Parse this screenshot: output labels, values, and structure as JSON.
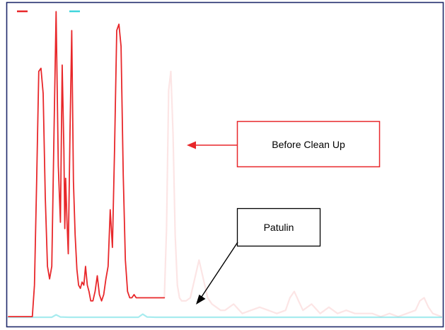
{
  "chart_data": {
    "type": "line",
    "title": "",
    "xlabel": "",
    "ylabel": "",
    "xlim": [
      0,
      100
    ],
    "ylim": [
      0,
      100
    ],
    "legend": {
      "placement": "top-left",
      "entries": [
        {
          "color": "#e8272a"
        },
        {
          "color": "#3fd5dc"
        }
      ]
    },
    "series": [
      {
        "color": "#e8272a",
        "opacity": 1.0,
        "x": [
          0,
          5.0,
          5.5,
          6.0,
          6.5,
          7.0,
          7.5,
          8.0,
          8.5,
          9.0,
          9.5,
          10.0,
          10.5,
          11.0,
          11.5,
          12.0,
          12.4,
          12.8,
          13.0,
          13.2,
          13.5,
          13.8,
          14.2,
          14.6,
          15.0,
          15.4,
          15.8,
          16.2,
          16.6,
          17.0,
          17.4,
          17.8,
          18.2,
          18.6,
          19.0,
          19.5,
          20.0,
          20.5,
          21.0,
          21.5,
          22.0,
          22.5,
          23.0,
          23.5,
          24.0,
          24.5,
          25.0,
          25.5,
          26.0,
          26.5,
          27.0,
          27.5,
          28.0,
          28.5,
          29.0,
          29.5,
          30.0,
          30.5,
          31.0,
          31.5,
          32.0,
          32.5,
          33.0,
          33.5,
          34.0,
          34.5,
          35.0,
          35.5,
          36.0
        ],
        "y": [
          2,
          2,
          2,
          12,
          45,
          80,
          81,
          73,
          40,
          18,
          14,
          18,
          60,
          99,
          50,
          32,
          82,
          55,
          30,
          46,
          33,
          22,
          60,
          93,
          45,
          28,
          17,
          12,
          11,
          13,
          12,
          18,
          12,
          10,
          7,
          7,
          10,
          15,
          9,
          7,
          9,
          14,
          18,
          36,
          24,
          55,
          93,
          95,
          88,
          47,
          20,
          10,
          8,
          8,
          9,
          8,
          8,
          8,
          8,
          8,
          8,
          8,
          8,
          8,
          8,
          8,
          8,
          8,
          8
        ]
      },
      {
        "color": "#e8272a",
        "opacity": 0.12,
        "x": [
          36.0,
          36.5,
          37.0,
          37.5,
          38.0,
          38.5,
          39.0,
          39.5,
          40.0,
          41.0,
          42.0,
          43.0,
          44.0,
          45.0,
          46.0,
          47.0,
          48.0,
          49.0,
          50.0,
          52.0,
          54.0,
          56.0,
          58.0,
          60.0,
          62.0,
          64.0,
          65.0,
          66.0,
          67.0,
          68.0,
          70.0,
          72.0,
          74.0,
          76.0,
          78.0,
          80.0,
          82.0,
          84.0,
          86.0,
          88.0,
          90.0,
          92.0,
          94.0,
          95.0,
          96.0,
          97.0,
          98.0,
          100.0
        ],
        "y": [
          8,
          30,
          74,
          80,
          60,
          28,
          12,
          8,
          7,
          7,
          8,
          14,
          20,
          14,
          8,
          6,
          5,
          4,
          4,
          6,
          3,
          4,
          5,
          4,
          3,
          4,
          8,
          10,
          7,
          4,
          6,
          3,
          5,
          3,
          4,
          3,
          3,
          3,
          2,
          3,
          2,
          3,
          4,
          7,
          8,
          5,
          3,
          2
        ]
      },
      {
        "color": "#3fd5dc",
        "opacity": 0.45,
        "x": [
          0,
          5.0,
          10.0,
          11.0,
          12.0,
          14.0,
          18.0,
          22.0,
          26.0,
          30.0,
          31.0,
          32.0,
          34.0,
          40.0,
          50.0,
          60.0,
          70.0,
          80.0,
          90.0,
          100.0
        ],
        "y": [
          1.8,
          1.8,
          1.8,
          2.6,
          1.9,
          1.8,
          1.8,
          1.8,
          1.8,
          1.8,
          2.8,
          1.9,
          1.8,
          1.8,
          1.8,
          1.8,
          1.8,
          1.8,
          1.8,
          1.8
        ]
      }
    ],
    "annotations": [
      {
        "text": "Before Clean Up",
        "box_color": "#e8272a",
        "arrow_color": "#e8272a",
        "points_to": "faded red trace main peak"
      },
      {
        "text": "Patulin",
        "box_color": "#000000",
        "arrow_color": "#000000",
        "points_to": "cyan trace at elution region"
      }
    ]
  }
}
